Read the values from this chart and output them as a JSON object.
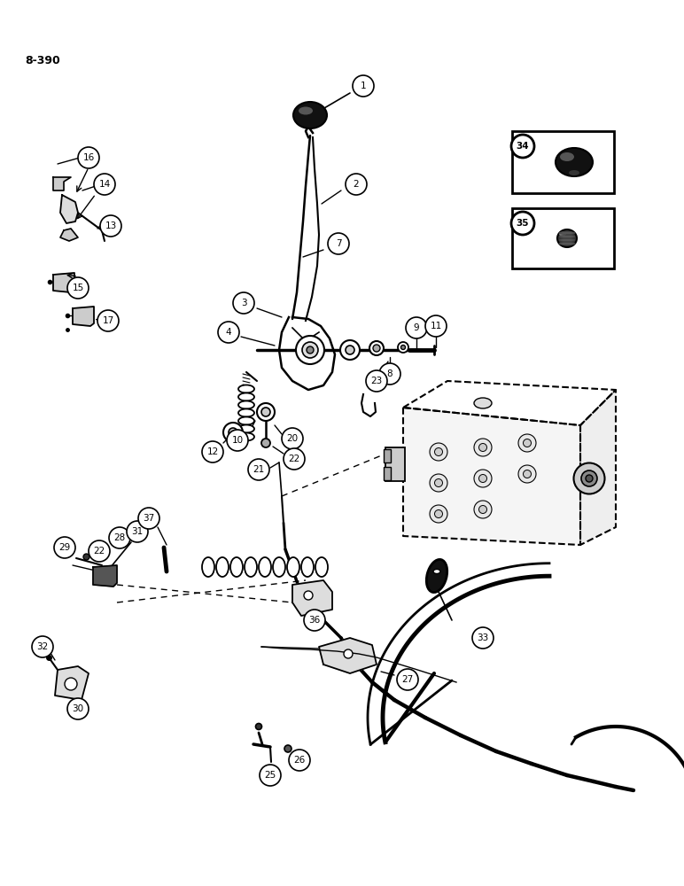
{
  "page_label": "8-390",
  "bg": "#ffffff",
  "lc": "#000000",
  "fig_w": 7.72,
  "fig_h": 10.0,
  "dpi": 100
}
